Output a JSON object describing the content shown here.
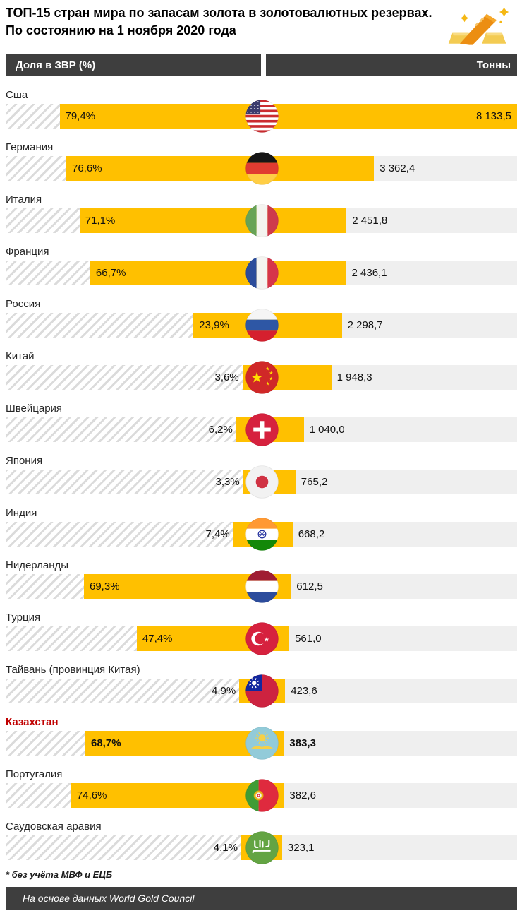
{
  "title": {
    "line1": "ТОП-15 стран мира по запасам золота в золотовалютных резервах.",
    "line2": "По состоянию на 1 ноября 2020 года"
  },
  "header": {
    "left": "Доля в ЗВР (%)",
    "right": "Тонны"
  },
  "colors": {
    "bar": "#FFC000",
    "header_bg": "#3E3E3E",
    "track": "#EFEFEF",
    "hatch": "#DBDBDB",
    "highlight": "#C00000"
  },
  "rows": [
    {
      "country": "Сша",
      "flag": "usa",
      "share_pct": 79.4,
      "share_label": "79,4%",
      "tons": 8133.5,
      "tons_label": "8 133,5",
      "highlight": false
    },
    {
      "country": "Германия",
      "flag": "germany",
      "share_pct": 76.6,
      "share_label": "76,6%",
      "tons": 3362.4,
      "tons_label": "3 362,4",
      "highlight": false
    },
    {
      "country": "Италия",
      "flag": "italy",
      "share_pct": 71.1,
      "share_label": "71,1%",
      "tons": 2451.8,
      "tons_label": "2 451,8",
      "highlight": false
    },
    {
      "country": "Франция",
      "flag": "france",
      "share_pct": 66.7,
      "share_label": "66,7%",
      "tons": 2436.1,
      "tons_label": "2 436,1",
      "highlight": false
    },
    {
      "country": "Россия",
      "flag": "russia",
      "share_pct": 23.9,
      "share_label": "23,9%",
      "tons": 2298.7,
      "tons_label": "2 298,7",
      "highlight": false
    },
    {
      "country": "Китай",
      "flag": "china",
      "share_pct": 3.6,
      "share_label": "3,6%",
      "tons": 1948.3,
      "tons_label": "1 948,3",
      "highlight": false
    },
    {
      "country": "Швейцария",
      "flag": "switzerland",
      "share_pct": 6.2,
      "share_label": "6,2%",
      "tons": 1040.0,
      "tons_label": "1 040,0",
      "highlight": false
    },
    {
      "country": "Япония",
      "flag": "japan",
      "share_pct": 3.3,
      "share_label": "3,3%",
      "tons": 765.2,
      "tons_label": "765,2",
      "highlight": false
    },
    {
      "country": "Индия",
      "flag": "india",
      "share_pct": 7.4,
      "share_label": "7,4%",
      "tons": 668.2,
      "tons_label": "668,2",
      "highlight": false
    },
    {
      "country": "Нидерланды",
      "flag": "netherlands",
      "share_pct": 69.3,
      "share_label": "69,3%",
      "tons": 612.5,
      "tons_label": "612,5",
      "highlight": false
    },
    {
      "country": "Турция",
      "flag": "turkey",
      "share_pct": 47.4,
      "share_label": "47,4%",
      "tons": 561.0,
      "tons_label": "561,0",
      "highlight": false
    },
    {
      "country": "Тайвань (провинция Китая)",
      "flag": "taiwan",
      "share_pct": 4.9,
      "share_label": "4,9%",
      "tons": 423.6,
      "tons_label": "423,6",
      "highlight": false
    },
    {
      "country": "Казахстан",
      "flag": "kazakhstan",
      "share_pct": 68.7,
      "share_label": "68,7%",
      "tons": 383.3,
      "tons_label": "383,3",
      "highlight": true
    },
    {
      "country": "Португалия",
      "flag": "portugal",
      "share_pct": 74.6,
      "share_label": "74,6%",
      "tons": 382.6,
      "tons_label": "382,6",
      "highlight": false
    },
    {
      "country": "Саудовская аравия",
      "flag": "saudi-arabia",
      "share_pct": 4.1,
      "share_label": "4,1%",
      "tons": 323.1,
      "tons_label": "323,1",
      "highlight": false
    }
  ],
  "footnote": "* без учёта МВФ и ЕЦБ",
  "source": "На основе данных World Gold Council",
  "chart_data": {
    "type": "bar",
    "orientation": "horizontal-diverging",
    "title": "ТОП-15 стран мира по запасам золота в золотовалютных резервах. По состоянию на 1 ноября 2020 года",
    "categories": [
      "Сша",
      "Германия",
      "Италия",
      "Франция",
      "Россия",
      "Китай",
      "Швейцария",
      "Япония",
      "Индия",
      "Нидерланды",
      "Турция",
      "Тайвань (провинция Китая)",
      "Казахстан",
      "Португалия",
      "Саудовская аравия"
    ],
    "series": [
      {
        "name": "Доля в ЗВР (%)",
        "values": [
          79.4,
          76.6,
          71.1,
          66.7,
          23.9,
          3.6,
          6.2,
          3.3,
          7.4,
          69.3,
          47.4,
          4.9,
          68.7,
          74.6,
          4.1
        ]
      },
      {
        "name": "Тонны",
        "values": [
          8133.5,
          3362.4,
          2451.8,
          2436.1,
          2298.7,
          1948.3,
          1040.0,
          765.2,
          668.2,
          612.5,
          561.0,
          423.6,
          383.3,
          382.6,
          323.1
        ]
      }
    ],
    "highlighted_category": "Казахстан",
    "bar_color": "#FFC000",
    "footnote": "* без учёта МВФ и ЕЦБ",
    "source": "На основе данных World Gold Council"
  }
}
